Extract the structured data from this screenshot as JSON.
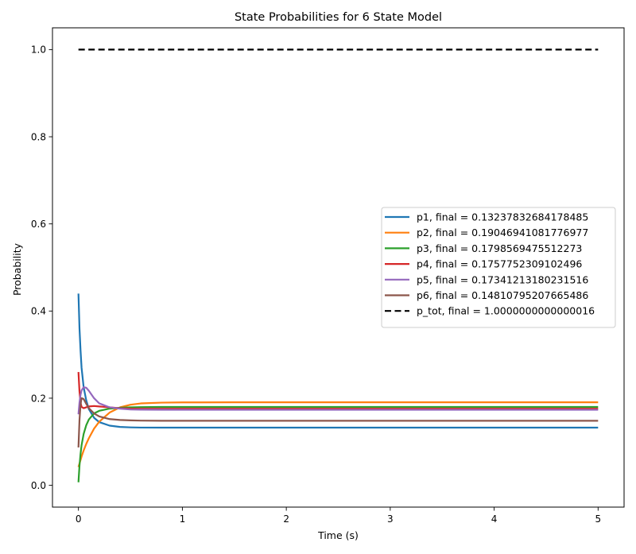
{
  "chart_data": {
    "type": "line",
    "title": "State Probabilities for 6 State Model",
    "xlabel": "Time (s)",
    "ylabel": "Probability",
    "xlim": [
      -0.25,
      5.25
    ],
    "ylim": [
      -0.05,
      1.05
    ],
    "xticks": [
      0,
      1,
      2,
      3,
      4,
      5
    ],
    "xtick_labels": [
      "0",
      "1",
      "2",
      "3",
      "4",
      "5"
    ],
    "yticks": [
      0.0,
      0.2,
      0.4,
      0.6,
      0.8,
      1.0
    ],
    "ytick_labels": [
      "0.0",
      "0.2",
      "0.4",
      "0.6",
      "0.8",
      "1.0"
    ],
    "grid": false,
    "legend_position": "center-right",
    "x": [
      0,
      0.01,
      0.02,
      0.03,
      0.05,
      0.075,
      0.1,
      0.15,
      0.2,
      0.3,
      0.4,
      0.5,
      0.6,
      0.8,
      1.0,
      1.5,
      2,
      3,
      4,
      5
    ],
    "series": [
      {
        "name": "p1, final = 0.13237832684178485",
        "color": "#1f77b4",
        "dash": "solid",
        "values": [
          0.44,
          0.36,
          0.31,
          0.27,
          0.225,
          0.195,
          0.175,
          0.155,
          0.145,
          0.137,
          0.134,
          0.133,
          0.1325,
          0.1324,
          0.1324,
          0.1324,
          0.1324,
          0.1324,
          0.1324,
          0.1324
        ]
      },
      {
        "name": "p2, final = 0.19046941081776977",
        "color": "#ff7f0e",
        "dash": "solid",
        "values": [
          0.042,
          0.05,
          0.058,
          0.066,
          0.08,
          0.095,
          0.108,
          0.13,
          0.146,
          0.167,
          0.179,
          0.185,
          0.188,
          0.1898,
          0.1903,
          0.1905,
          0.1905,
          0.1905,
          0.1905,
          0.1905
        ]
      },
      {
        "name": "p3, final = 0.1798569475512273",
        "color": "#2ca02c",
        "dash": "solid",
        "values": [
          0.007,
          0.045,
          0.072,
          0.092,
          0.118,
          0.138,
          0.151,
          0.165,
          0.171,
          0.176,
          0.178,
          0.179,
          0.1795,
          0.1798,
          0.1799,
          0.1799,
          0.1799,
          0.1799,
          0.1799,
          0.1799
        ]
      },
      {
        "name": "p4, final = 0.1757752309102496",
        "color": "#d62728",
        "dash": "solid",
        "values": [
          0.26,
          0.215,
          0.19,
          0.18,
          0.177,
          0.179,
          0.181,
          0.182,
          0.181,
          0.179,
          0.177,
          0.176,
          0.1759,
          0.1758,
          0.1758,
          0.1758,
          0.1758,
          0.1758,
          0.1758,
          0.1758
        ]
      },
      {
        "name": "p5, final = 0.17341213180231516",
        "color": "#9467bd",
        "dash": "solid",
        "values": [
          0.163,
          0.19,
          0.208,
          0.218,
          0.225,
          0.224,
          0.217,
          0.2,
          0.188,
          0.179,
          0.176,
          0.174,
          0.1737,
          0.1735,
          0.1734,
          0.1734,
          0.1734,
          0.1734,
          0.1734,
          0.1734
        ]
      },
      {
        "name": "p6, final = 0.14810795207665486",
        "color": "#8c564b",
        "dash": "solid",
        "values": [
          0.087,
          0.15,
          0.185,
          0.2,
          0.198,
          0.187,
          0.177,
          0.165,
          0.158,
          0.152,
          0.15,
          0.149,
          0.1485,
          0.1482,
          0.1481,
          0.1481,
          0.1481,
          0.1481,
          0.1481,
          0.1481
        ]
      },
      {
        "name": "p_tot, final = 1.0000000000000016",
        "color": "#000000",
        "dash": "dashed",
        "values": [
          1.0,
          1.0,
          1.0,
          1.0,
          1.0,
          1.0,
          1.0,
          1.0,
          1.0,
          1.0,
          1.0,
          1.0,
          1.0,
          1.0,
          1.0,
          1.0,
          1.0,
          1.0,
          1.0,
          1.0
        ]
      }
    ]
  }
}
